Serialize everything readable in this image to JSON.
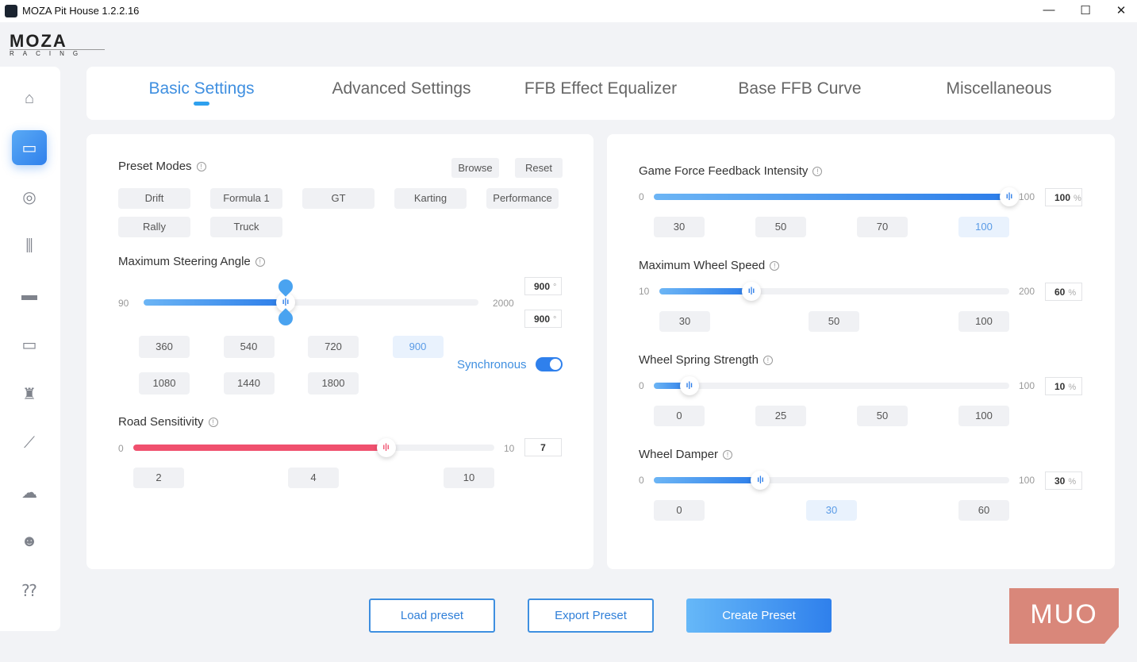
{
  "window": {
    "title": "MOZA Pit House 1.2.2.16",
    "minimize": "—",
    "maximize": "☐",
    "close": "✕"
  },
  "logo": {
    "brand": "MOZA",
    "sub": "RACING"
  },
  "sidebar": {
    "items": [
      {
        "icon": "home-icon",
        "glyph": "⌂"
      },
      {
        "icon": "wheelbase-icon",
        "glyph": "▭",
        "active": true
      },
      {
        "icon": "steering-wheel-icon",
        "glyph": "◎"
      },
      {
        "icon": "pedals-icon",
        "glyph": "⫼"
      },
      {
        "icon": "dashboard-display-icon",
        "glyph": "▬"
      },
      {
        "icon": "wheel-indicator-icon",
        "glyph": "▭"
      },
      {
        "icon": "shifter-icon",
        "glyph": "♜"
      },
      {
        "icon": "handbrake-icon",
        "glyph": "⟋"
      },
      {
        "icon": "cloud-upload-icon",
        "glyph": "☁"
      },
      {
        "icon": "user-icon",
        "glyph": "☻"
      },
      {
        "icon": "faq-icon",
        "glyph": "⁇"
      }
    ]
  },
  "tabs": [
    {
      "label": "Basic Settings",
      "active": true
    },
    {
      "label": "Advanced Settings"
    },
    {
      "label": "FFB Effect Equalizer"
    },
    {
      "label": "Base FFB Curve"
    },
    {
      "label": "Miscellaneous"
    }
  ],
  "left": {
    "preset_modes": {
      "title": "Preset Modes",
      "browse": "Browse",
      "reset": "Reset",
      "modes": [
        "Drift",
        "Formula 1",
        "GT",
        "Karting",
        "Performance",
        "Rally",
        "Truck"
      ]
    },
    "steering": {
      "title": "Maximum Steering Angle",
      "min": "90",
      "max": "2000",
      "value": 900,
      "value_top": "900",
      "value_bottom": "900",
      "unit": "°",
      "presets": [
        "360",
        "540",
        "720",
        "900",
        "1080",
        "1440",
        "1800"
      ],
      "selected": "900",
      "sync_label": "Synchronous",
      "sync_on": true
    },
    "road": {
      "title": "Road Sensitivity",
      "min": "0",
      "max": "10",
      "value": 7,
      "value_text": "7",
      "presets": [
        "2",
        "4",
        "10"
      ],
      "color": "#f0506e"
    }
  },
  "right": {
    "sliders": [
      {
        "title": "Game Force Feedback Intensity",
        "min": "0",
        "max": "100",
        "value": 100,
        "value_text": "100",
        "unit": "%",
        "presets": [
          "30",
          "50",
          "70",
          "100"
        ],
        "selected": "100"
      },
      {
        "title": "Maximum Wheel Speed",
        "min": "10",
        "max": "200",
        "value": 60,
        "value_text": "60",
        "unit": "%",
        "presets": [
          "30",
          "50",
          "100"
        ]
      },
      {
        "title": "Wheel Spring Strength",
        "min": "0",
        "max": "100",
        "value": 10,
        "value_text": "10",
        "unit": "%",
        "presets": [
          "0",
          "25",
          "50",
          "100"
        ]
      },
      {
        "title": "Wheel Damper",
        "min": "0",
        "max": "100",
        "value": 30,
        "value_text": "30",
        "unit": "%",
        "presets": [
          "0",
          "30",
          "60"
        ],
        "selected": "30"
      }
    ]
  },
  "footer": {
    "load": "Load preset",
    "export": "Export Preset",
    "create": "Create Preset"
  },
  "watermark": "MUO",
  "colors": {
    "accent": "#2f80ec",
    "road": "#f0506e"
  }
}
